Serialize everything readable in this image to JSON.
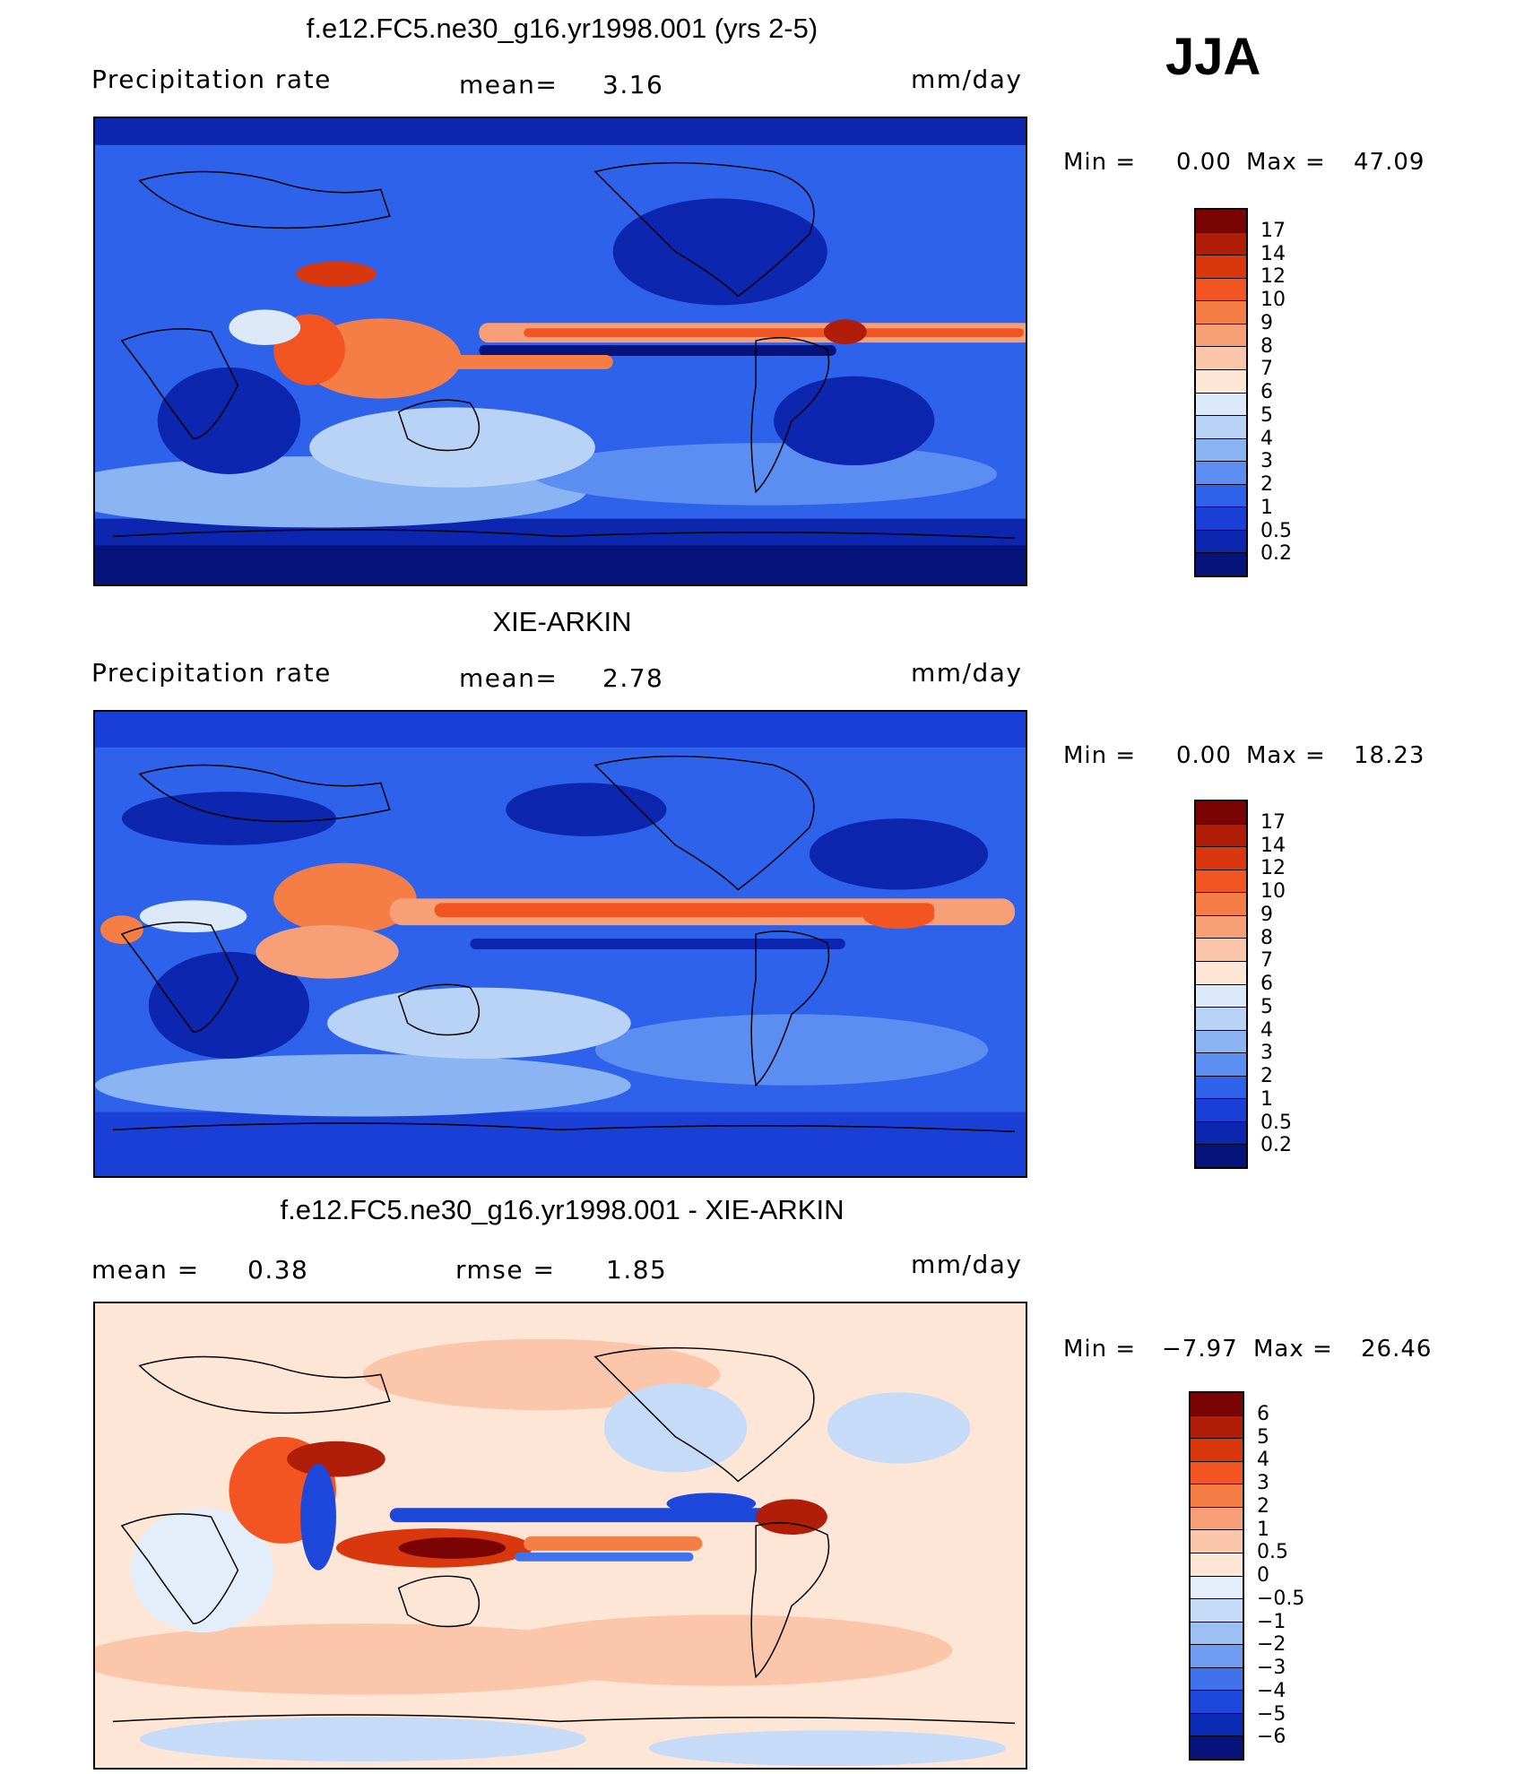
{
  "season": "JJA",
  "panels": [
    {
      "title": "f.e12.FC5.ne30_g16.yr1998.001 (yrs 2-5)",
      "left_label": "Precipitation  rate",
      "mid_label": "mean=",
      "mid_value": "3.16",
      "units": "mm/day",
      "min_label": "Min  =",
      "min_value": "0.00",
      "max_label": "Max  =",
      "max_value": "47.09",
      "levels": [
        "17",
        "14",
        "12",
        "10",
        "9",
        "8",
        "7",
        "6",
        "5",
        "4",
        "3",
        "2",
        "1",
        "0.5",
        "0.2"
      ]
    },
    {
      "title": "XIE-ARKIN",
      "left_label": "Precipitation  rate",
      "mid_label": "mean=",
      "mid_value": "2.78",
      "units": "mm/day",
      "min_label": "Min  =",
      "min_value": "0.00",
      "max_label": "Max  =",
      "max_value": "18.23",
      "levels": [
        "17",
        "14",
        "12",
        "10",
        "9",
        "8",
        "7",
        "6",
        "5",
        "4",
        "3",
        "2",
        "1",
        "0.5",
        "0.2"
      ]
    },
    {
      "title": "f.e12.FC5.ne30_g16.yr1998.001 - XIE-ARKIN",
      "left_label": "mean  =",
      "left_value": "0.38",
      "mid_label": "rmse  =",
      "mid_value": "1.85",
      "units": "mm/day",
      "min_label": "Min  =",
      "min_value": "−7.97",
      "max_label": "Max  =",
      "max_value": "26.46",
      "levels": [
        "6",
        "5",
        "4",
        "3",
        "2",
        "1",
        "0.5",
        "0",
        "−0.5",
        "−1",
        "−2",
        "−3",
        "−4",
        "−5",
        "−6"
      ]
    }
  ],
  "colors": {
    "precip_scale": [
      "#7a0403",
      "#b01e0a",
      "#d9370e",
      "#f25522",
      "#f57e46",
      "#f7a078",
      "#fbc6a9",
      "#fde6d6",
      "#dbe9f8",
      "#b9d3f6",
      "#8bb4f3",
      "#5b8ef0",
      "#2f62ea",
      "#1a3fd6",
      "#0c26b0",
      "#05137a"
    ],
    "diff_scale": [
      "#7a0403",
      "#b01e0a",
      "#d9370e",
      "#f25522",
      "#f57e46",
      "#f7a078",
      "#fbc6a9",
      "#fde6d6",
      "#e4eefb",
      "#c6dbf8",
      "#9ec1f4",
      "#6f9cf0",
      "#3f72eb",
      "#1e48dc",
      "#0b2bb4",
      "#05137a"
    ]
  }
}
